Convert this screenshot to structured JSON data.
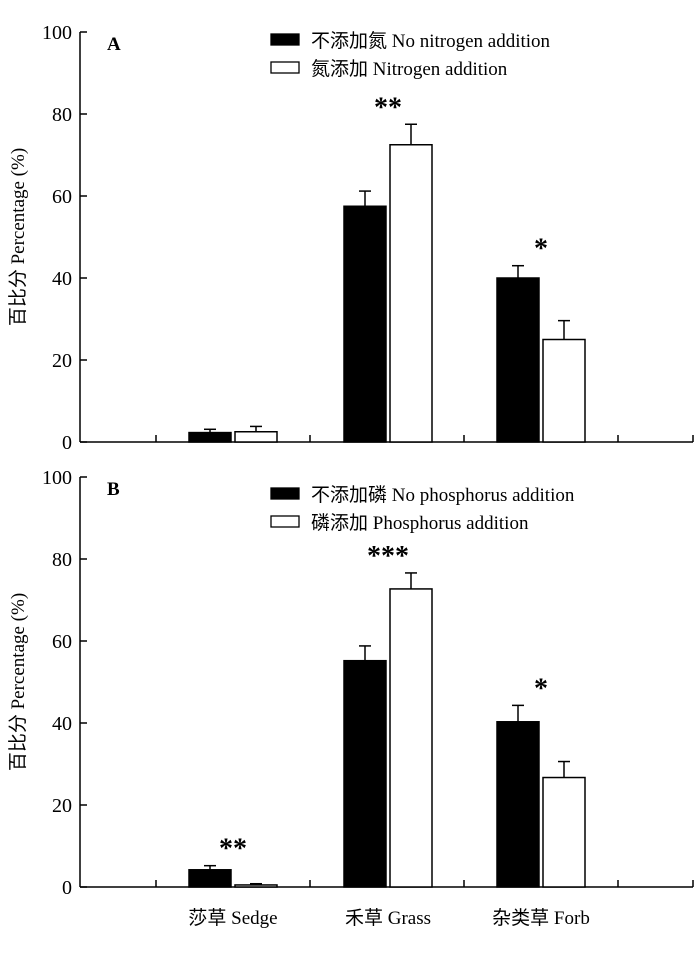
{
  "chart_data": [
    {
      "type": "bar",
      "panel": "A",
      "categories": [
        "莎草 Sedge",
        "禾草 Grass",
        "杂类草 Forb"
      ],
      "ylabel": "百比分 Percentage (%)",
      "ylim": [
        0,
        100
      ],
      "yticks": [
        0,
        20,
        40,
        60,
        80,
        100
      ],
      "series": [
        {
          "name": "不添加氮  No nitrogen addition",
          "fill": "#000000",
          "values": [
            2.3,
            57.5,
            40.0
          ],
          "errors": [
            0.8,
            3.7,
            3.0
          ]
        },
        {
          "name": "氮添加  Nitrogen addition",
          "fill": "#ffffff",
          "values": [
            2.5,
            72.5,
            25.0
          ],
          "errors": [
            1.3,
            5.0,
            4.6
          ]
        }
      ],
      "significance": [
        "",
        "**",
        "*"
      ],
      "legend_position": "top-right",
      "grid": false
    },
    {
      "type": "bar",
      "panel": "B",
      "categories": [
        "莎草 Sedge",
        "禾草 Grass",
        "杂类草 Forb"
      ],
      "ylabel": "百比分 Percentage (%)",
      "ylim": [
        0,
        100
      ],
      "yticks": [
        0,
        20,
        40,
        60,
        80,
        100
      ],
      "series": [
        {
          "name": "不添加磷  No phosphorus addition",
          "fill": "#000000",
          "values": [
            4.2,
            55.2,
            40.3
          ],
          "errors": [
            1.0,
            3.6,
            4.0
          ]
        },
        {
          "name": "磷添加  Phosphorus addition",
          "fill": "#ffffff",
          "values": [
            0.5,
            72.7,
            26.7
          ],
          "errors": [
            0.3,
            3.9,
            3.9
          ]
        }
      ],
      "significance": [
        "**",
        "***",
        "*"
      ],
      "legend_position": "top-right",
      "grid": false
    }
  ]
}
